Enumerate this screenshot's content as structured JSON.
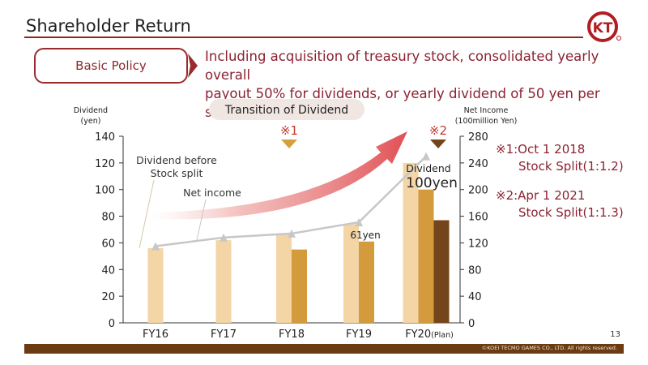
{
  "header": {
    "title": "Shareholder Return",
    "logo_text": "KT"
  },
  "policy": {
    "label": "Basic Policy",
    "text_line1": "Including acquisition of treasury stock, consolidated yearly overall",
    "text_line2": "payout 50% for dividends, or yearly dividend of 50 yen per stock."
  },
  "notes": {
    "note1_line1": "※1:Oct 1 2018",
    "note1_line2": "Stock Split(1:1.2)",
    "note2_line1": "※2:Apr 1 2021",
    "note2_line2": "Stock Split(1:1.3)"
  },
  "footer": {
    "page": "13",
    "copyright": "©KOEI TECMO GAMES CO., LTD. All rights reserved."
  },
  "colors": {
    "accent": "#8b2230",
    "bar_before_split": "#f3d5a6",
    "bar_dividend": "#d39b3c",
    "bar_fy20_adjusted": "#74441a",
    "net_income_line": "#c7c7c7",
    "footer_bar": "#6b3b12"
  },
  "chart_data": {
    "type": "bar",
    "title": "Transition of Dividend",
    "categories": [
      "FY16",
      "FY17",
      "FY18",
      "FY19",
      "FY20"
    ],
    "category_suffix_fy20": "(Plan)",
    "ylabel_left_line1": "Dividend",
    "ylabel_left_line2": "(yen)",
    "ylabel_right_line1": "Net Income",
    "ylabel_right_line2": "(100million Yen)",
    "ylim_left": [
      0,
      140
    ],
    "ylim_right": [
      0,
      280
    ],
    "left_ticks": [
      0,
      20,
      40,
      60,
      80,
      100,
      120,
      140
    ],
    "right_ticks": [
      0,
      40,
      80,
      120,
      160,
      200,
      240,
      280
    ],
    "series": [
      {
        "values": [
          56,
          62,
          67,
          74,
          120
        ]
      },
      {
        "values": [
          null,
          null,
          55,
          61,
          100
        ]
      },
      {
        "values": [
          null,
          null,
          null,
          null,
          77
        ]
      },
      {
        "type": "line",
        "axis": "right",
        "values": [
          115,
          128,
          134,
          151,
          250
        ]
      }
    ],
    "annotations": {
      "dividend_before_split_line1": "Dividend before",
      "dividend_before_split_line2": "Stock split",
      "net_income": "Net income",
      "fy19_label": "61yen",
      "fy20_label_line1": "Dividend",
      "fy20_label_line2": "100yen",
      "marker1": "※1",
      "marker2": "※2"
    }
  }
}
